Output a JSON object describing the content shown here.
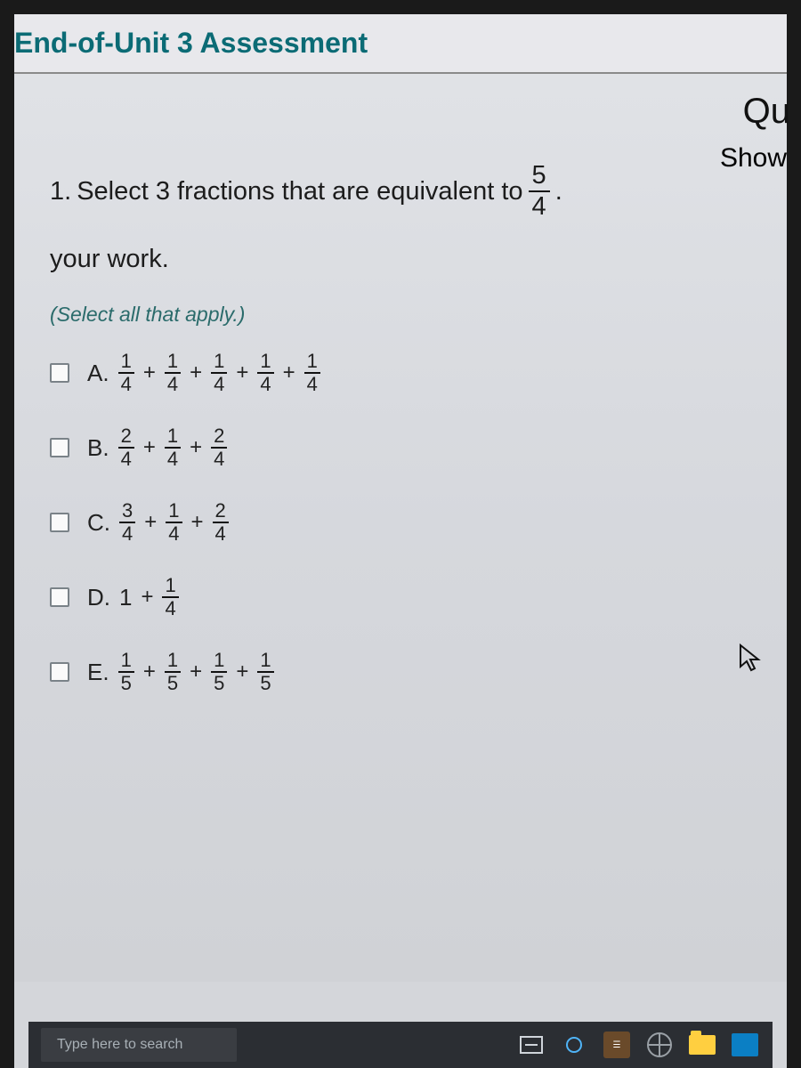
{
  "title": "End-of-Unit 3 Assessment",
  "header_right": "Qu",
  "question": {
    "number": "1.",
    "text_before": "Select 3  fractions that are equivalent to",
    "target_num": "5",
    "target_den": "4",
    "period": ".",
    "text_after": "Show",
    "line2": "your work."
  },
  "hint": "(Select all that apply.)",
  "options": [
    {
      "label": "A.",
      "terms": [
        {
          "n": "1",
          "d": "4"
        },
        {
          "n": "1",
          "d": "4"
        },
        {
          "n": "1",
          "d": "4"
        },
        {
          "n": "1",
          "d": "4"
        },
        {
          "n": "1",
          "d": "4"
        }
      ]
    },
    {
      "label": "B.",
      "terms": [
        {
          "n": "2",
          "d": "4"
        },
        {
          "n": "1",
          "d": "4"
        },
        {
          "n": "2",
          "d": "4"
        }
      ]
    },
    {
      "label": "C.",
      "terms": [
        {
          "n": "3",
          "d": "4"
        },
        {
          "n": "1",
          "d": "4"
        },
        {
          "n": "2",
          "d": "4"
        }
      ]
    },
    {
      "label": "D.",
      "whole": "1",
      "terms": [
        {
          "n": "1",
          "d": "4"
        }
      ]
    },
    {
      "label": "E.",
      "terms": [
        {
          "n": "1",
          "d": "5"
        },
        {
          "n": "1",
          "d": "5"
        },
        {
          "n": "1",
          "d": "5"
        },
        {
          "n": "1",
          "d": "5"
        }
      ]
    }
  ],
  "taskbar": {
    "search_placeholder": "Type here to search"
  },
  "colors": {
    "title_color": "#0b6b75",
    "hint_color": "#2a6b6b",
    "taskbar_bg": "#2b2e33"
  }
}
